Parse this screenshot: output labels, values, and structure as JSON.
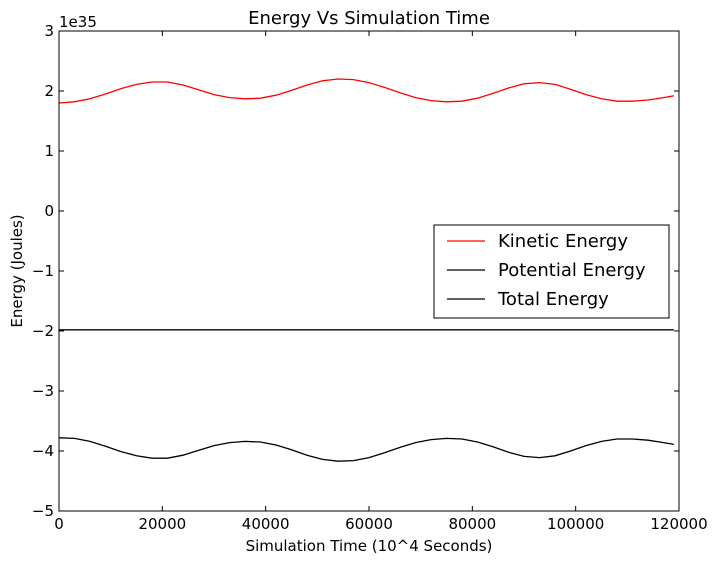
{
  "chart_data": {
    "type": "line",
    "title": "Energy Vs Simulation Time",
    "xlabel": "Simulation Time (10^4 Seconds)",
    "ylabel": "Energy (Joules)",
    "y_offset_label": "1e35",
    "xlim": [
      0,
      120000
    ],
    "ylim": [
      -5,
      3
    ],
    "xticks": [
      0,
      20000,
      40000,
      60000,
      80000,
      100000,
      120000
    ],
    "xtick_labels": [
      "0",
      "20000",
      "40000",
      "60000",
      "80000",
      "100000",
      "120000"
    ],
    "yticks": [
      3,
      2,
      1,
      0,
      -1,
      -2,
      -3,
      -4,
      -5
    ],
    "ytick_labels": [
      "3",
      "2",
      "1",
      "0",
      "−1",
      "−2",
      "−3",
      "−4",
      "−5"
    ],
    "grid": false,
    "legend_position": "center-right",
    "series": [
      {
        "name": "Kinetic Energy",
        "color": "#ff0000",
        "x": [
          0,
          3000,
          6000,
          9000,
          12000,
          15000,
          18000,
          21000,
          24000,
          27000,
          30000,
          33000,
          36000,
          39000,
          42000,
          45000,
          48000,
          51000,
          54000,
          57000,
          60000,
          63000,
          66000,
          69000,
          72000,
          75000,
          78000,
          81000,
          84000,
          87000,
          90000,
          93000,
          96000,
          99000,
          102000,
          105000,
          108000,
          111000,
          114000,
          117000,
          119000
        ],
        "values": [
          1.8,
          1.82,
          1.87,
          1.95,
          2.04,
          2.11,
          2.15,
          2.15,
          2.1,
          2.02,
          1.94,
          1.89,
          1.87,
          1.88,
          1.93,
          2.01,
          2.1,
          2.17,
          2.2,
          2.19,
          2.14,
          2.06,
          1.97,
          1.89,
          1.84,
          1.82,
          1.83,
          1.88,
          1.96,
          2.05,
          2.12,
          2.14,
          2.11,
          2.03,
          1.94,
          1.87,
          1.83,
          1.83,
          1.85,
          1.89,
          1.92
        ]
      },
      {
        "name": "Potential Energy",
        "color": "#000000",
        "x": [
          0,
          3000,
          6000,
          9000,
          12000,
          15000,
          18000,
          21000,
          24000,
          27000,
          30000,
          33000,
          36000,
          39000,
          42000,
          45000,
          48000,
          51000,
          54000,
          57000,
          60000,
          63000,
          66000,
          69000,
          72000,
          75000,
          78000,
          81000,
          84000,
          87000,
          90000,
          93000,
          96000,
          99000,
          102000,
          105000,
          108000,
          111000,
          114000,
          117000,
          119000
        ],
        "values": [
          -3.78,
          -3.79,
          -3.84,
          -3.92,
          -4.01,
          -4.08,
          -4.12,
          -4.12,
          -4.07,
          -3.99,
          -3.91,
          -3.86,
          -3.84,
          -3.85,
          -3.9,
          -3.98,
          -4.07,
          -4.14,
          -4.17,
          -4.16,
          -4.11,
          -4.03,
          -3.94,
          -3.86,
          -3.81,
          -3.79,
          -3.8,
          -3.85,
          -3.93,
          -4.02,
          -4.09,
          -4.11,
          -4.08,
          -4.0,
          -3.91,
          -3.84,
          -3.8,
          -3.8,
          -3.82,
          -3.86,
          -3.89
        ]
      },
      {
        "name": "Total Energy",
        "color": "#000000",
        "x": [
          0,
          119000
        ],
        "values": [
          -1.98,
          -1.98
        ]
      }
    ]
  }
}
